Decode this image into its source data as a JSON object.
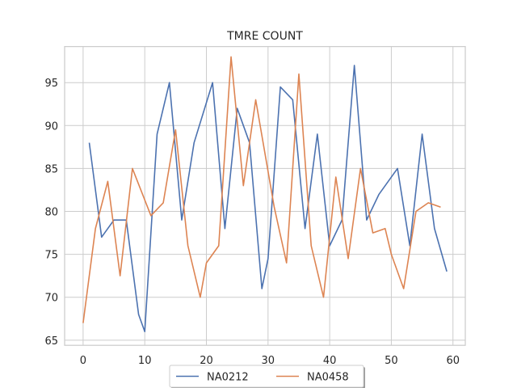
{
  "chart_data": {
    "type": "line",
    "title": "TMRE COUNT",
    "xlabel": "",
    "ylabel": "",
    "xlim": [
      -3,
      62
    ],
    "ylim": [
      64.4,
      99.2
    ],
    "xticks": [
      0,
      10,
      20,
      30,
      40,
      50,
      60
    ],
    "yticks": [
      65,
      70,
      75,
      80,
      85,
      90,
      95
    ],
    "grid": true,
    "legend_position": "bottom-center",
    "series": [
      {
        "name": "NA0212",
        "color": "#4c72b0",
        "x": [
          1,
          3,
          5,
          7,
          9,
          10,
          12,
          14,
          16,
          18,
          21,
          23,
          25,
          27,
          29,
          30,
          32,
          34,
          36,
          38,
          40,
          42,
          44,
          46,
          48,
          51,
          53,
          55,
          57,
          59
        ],
        "y": [
          88,
          77,
          79,
          79,
          68,
          66,
          89,
          95,
          79,
          88,
          95,
          78,
          92,
          88,
          71,
          74.5,
          94.5,
          93,
          78,
          89,
          76,
          79,
          97,
          79,
          82,
          85,
          76,
          89,
          78,
          73
        ]
      },
      {
        "name": "NA0458",
        "color": "#dd8452",
        "x": [
          0,
          2,
          4,
          6,
          8,
          11,
          13,
          15,
          17,
          19,
          20,
          22,
          24,
          26,
          28,
          31,
          33,
          35,
          37,
          39,
          41,
          43,
          45,
          47,
          49,
          50,
          52,
          54,
          56,
          58
        ],
        "y": [
          67,
          78,
          83.5,
          72.5,
          85,
          79.5,
          81,
          89.5,
          76,
          70,
          74,
          76,
          98,
          83,
          93,
          80.5,
          74,
          96,
          76,
          70,
          84,
          74.5,
          85,
          77.5,
          78,
          75,
          71,
          80,
          81,
          80.5
        ]
      }
    ]
  }
}
